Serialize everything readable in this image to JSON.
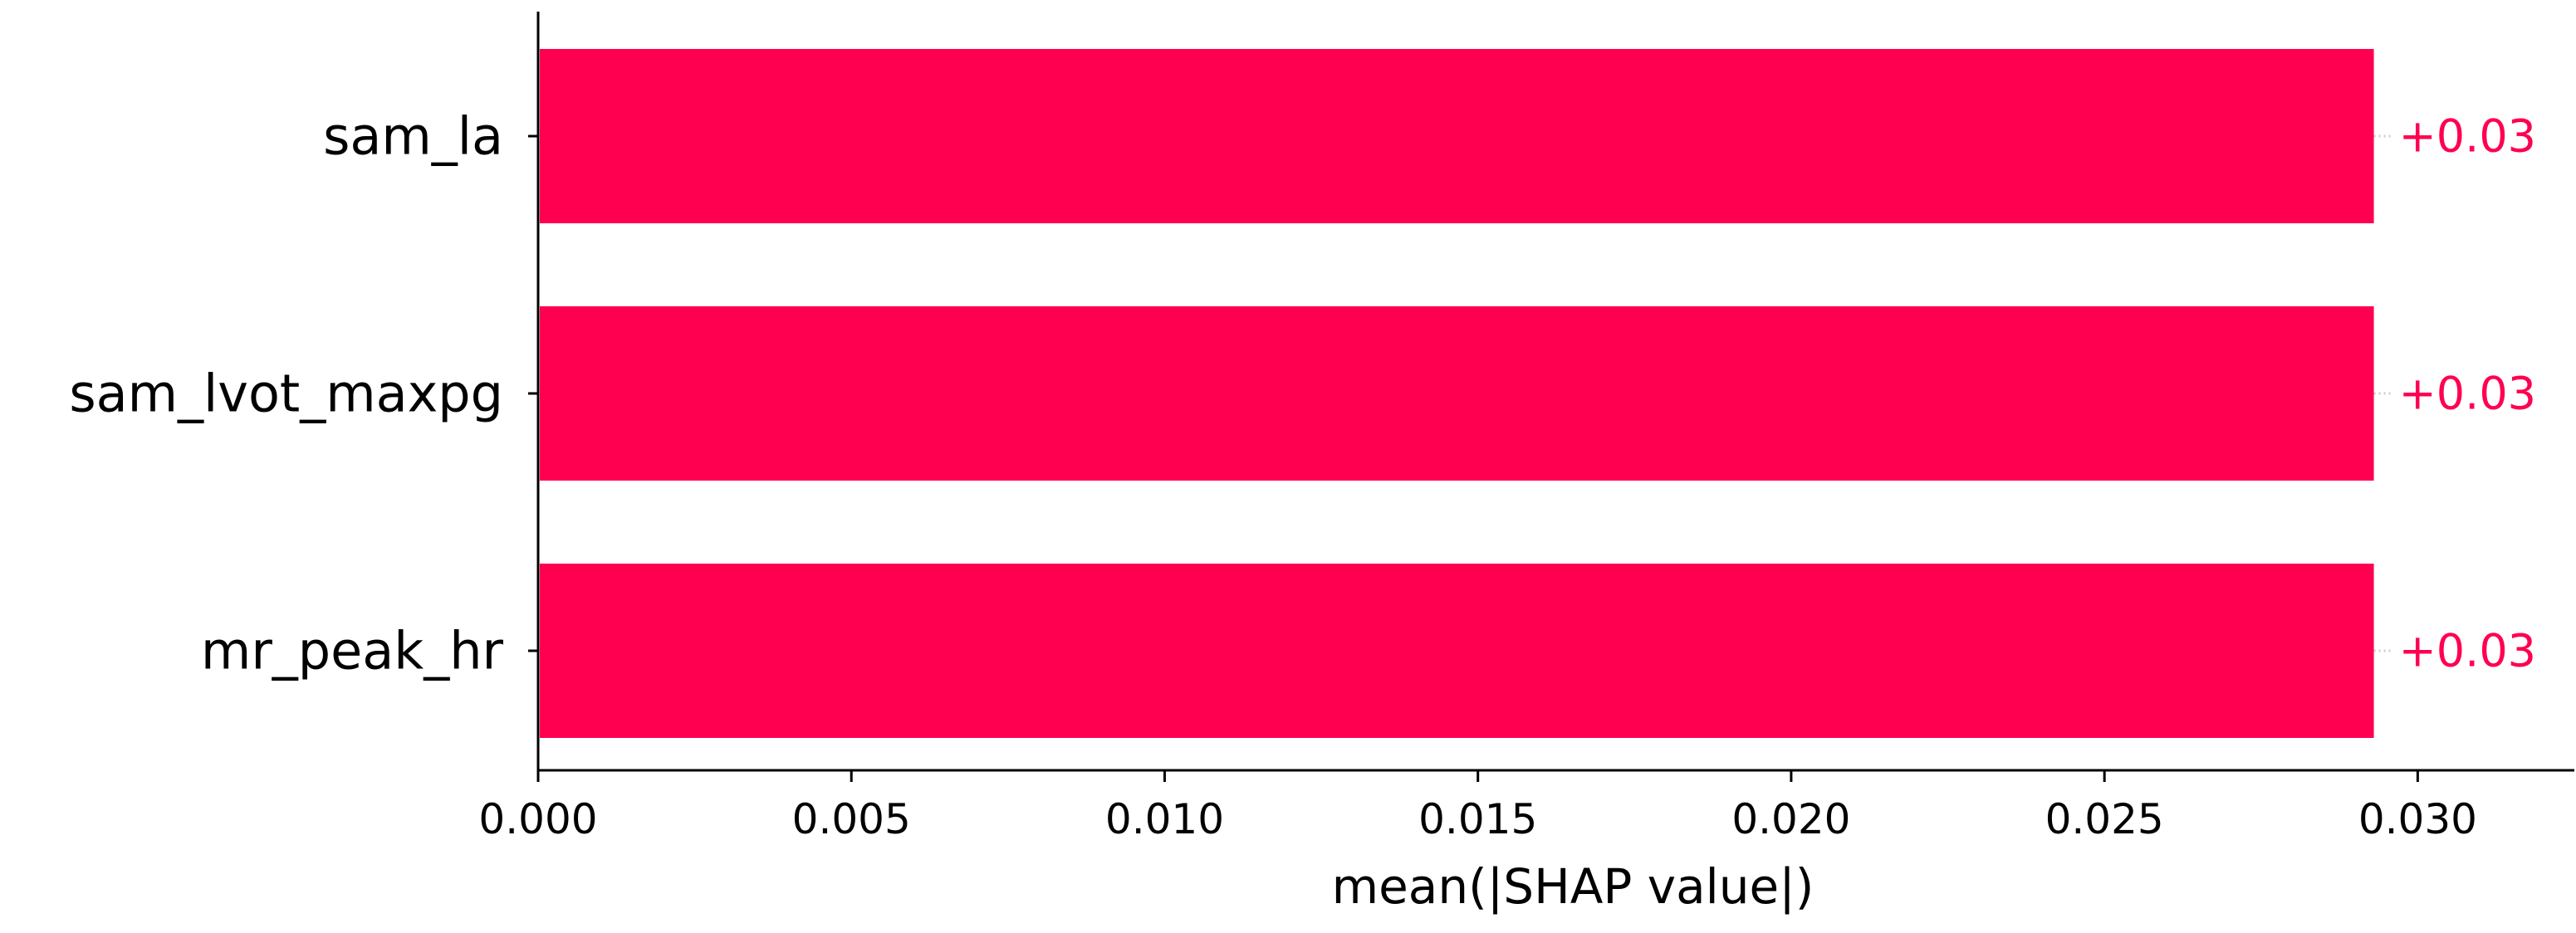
{
  "chart_data": {
    "type": "bar",
    "orientation": "horizontal",
    "categories": [
      "sam_la",
      "sam_lvot_maxpg",
      "mr_peak_hr"
    ],
    "values": [
      0.0293,
      0.0293,
      0.0293
    ],
    "value_labels": [
      "+0.03",
      "+0.03",
      "+0.03"
    ],
    "xlabel": "mean(|SHAP value|)",
    "ylabel": "",
    "title": "",
    "xlim": [
      0.0,
      0.0325
    ],
    "xticks": [
      0.0,
      0.005,
      0.01,
      0.015,
      0.02,
      0.025,
      0.03
    ],
    "xtick_labels": [
      "0.000",
      "0.005",
      "0.010",
      "0.015",
      "0.020",
      "0.025",
      "0.030"
    ],
    "grid": false,
    "legend": "none",
    "colors": {
      "bar": "#ff0051",
      "value_label": "#ff0051",
      "axis": "#000000",
      "text": "#000000",
      "leader_line": "#cccccc"
    }
  }
}
